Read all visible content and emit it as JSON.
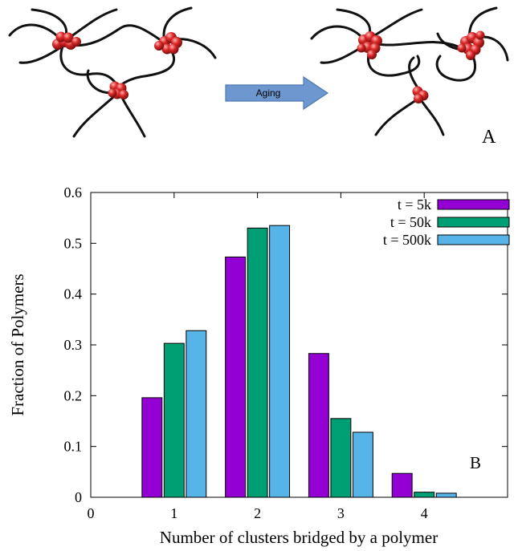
{
  "panel_a": {
    "arrow_label": "Aging",
    "panel_label": "A",
    "colors": {
      "bead": "#cc2222",
      "bead_highlight": "#ff9b9b",
      "chain": "#111111",
      "arrow_fill": "#6f97cf",
      "arrow_stroke": "#4f79b3"
    }
  },
  "chart_data": {
    "type": "bar",
    "panel_label": "B",
    "xlabel": "Number of clusters bridged by a polymer",
    "ylabel": "Fraction of Polymers",
    "xlim": [
      0,
      5
    ],
    "ylim": [
      0,
      0.6
    ],
    "x_ticks": [
      "0",
      "1",
      "2",
      "3",
      "4"
    ],
    "y_ticks": [
      "0",
      "0.1",
      "0.2",
      "0.3",
      "0.4",
      "0.5",
      "0.6"
    ],
    "categories": [
      "1",
      "2",
      "3",
      "4"
    ],
    "legend_position": "top-right",
    "grid": false,
    "series": [
      {
        "name": "t = 5k",
        "color": "#9400d3",
        "values": [
          0.196,
          0.473,
          0.283,
          0.047
        ]
      },
      {
        "name": "t = 50k",
        "color": "#009e73",
        "values": [
          0.303,
          0.53,
          0.155,
          0.01
        ]
      },
      {
        "name": "t = 500k",
        "color": "#56b4e9",
        "values": [
          0.328,
          0.535,
          0.128,
          0.008
        ]
      }
    ]
  }
}
